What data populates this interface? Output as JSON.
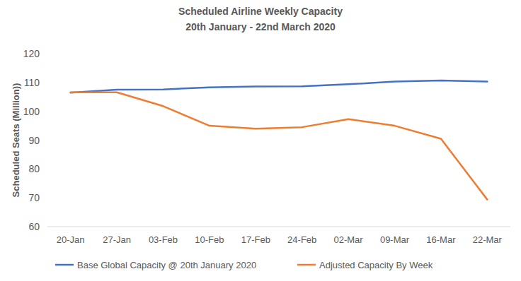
{
  "chart_data": {
    "type": "line",
    "title": "Scheduled Airline Weekly Capacity",
    "subtitle": "20th January - 22nd March 2020",
    "y_label": "Scheduled Seats (Million))",
    "categories": [
      "20-Jan",
      "27-Jan",
      "03-Feb",
      "10-Feb",
      "17-Feb",
      "24-Feb",
      "02-Mar",
      "09-Mar",
      "16-Mar",
      "22-Mar"
    ],
    "series": [
      {
        "name": "Base Global Capacity @ 20th January 2020",
        "color": "#4472c4",
        "values": [
          106.5,
          107.5,
          107.6,
          108.3,
          108.6,
          108.7,
          109.4,
          110.3,
          110.7,
          110.3
        ]
      },
      {
        "name": "Adjusted Capacity By Week",
        "color": "#ed7d31",
        "values": [
          106.6,
          106.6,
          101.8,
          95,
          94,
          94.5,
          97.3,
          95,
          90.5,
          69.4
        ]
      }
    ],
    "ylim": [
      60,
      120
    ],
    "yticks": [
      60,
      70,
      80,
      90,
      100,
      110,
      120
    ],
    "grid": false,
    "legend": "bottom"
  }
}
